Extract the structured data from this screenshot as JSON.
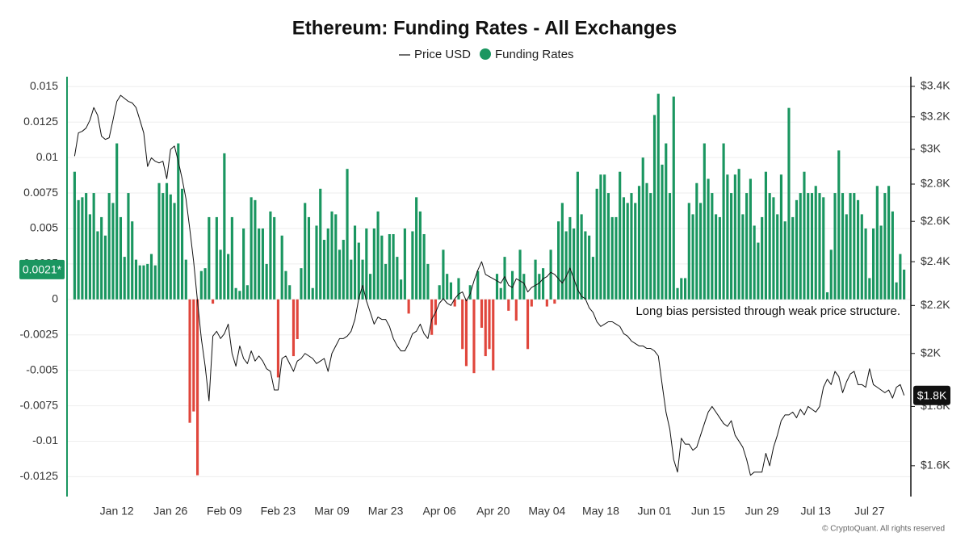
{
  "chart_data": {
    "type": "combo",
    "title": "Ethereum: Funding Rates - All Exchanges",
    "annotation": "Long bias persisted through weak price structure.",
    "footer": "© CryptoQuant. All rights reserved",
    "categories": [
      null,
      null,
      null,
      null,
      null,
      null,
      null,
      null,
      null,
      null,
      null,
      "Jan 12",
      null,
      null,
      null,
      null,
      null,
      null,
      null,
      null,
      null,
      null,
      null,
      null,
      null,
      "Jan 26",
      null,
      null,
      null,
      null,
      null,
      null,
      null,
      null,
      null,
      null,
      null,
      null,
      null,
      "Feb 09",
      null,
      null,
      null,
      null,
      null,
      null,
      null,
      null,
      null,
      null,
      null,
      null,
      null,
      "Feb 23",
      null,
      null,
      null,
      null,
      null,
      null,
      null,
      null,
      null,
      null,
      null,
      null,
      null,
      "Mar 09",
      null,
      null,
      null,
      null,
      null,
      null,
      null,
      null,
      null,
      null,
      null,
      null,
      null,
      "Mar 23",
      null,
      null,
      null,
      null,
      null,
      null,
      null,
      null,
      null,
      null,
      null,
      null,
      null,
      "Apr 06",
      null,
      null,
      null,
      null,
      null,
      null,
      null,
      null,
      null,
      null,
      null,
      null,
      null,
      "Apr 20",
      null,
      null,
      null,
      null,
      null,
      null,
      null,
      null,
      null,
      null,
      null,
      null,
      null,
      "May 04",
      null,
      null,
      null,
      null,
      null,
      null,
      null,
      null,
      null,
      null,
      null,
      null,
      null,
      "May 18",
      null,
      null,
      null,
      null,
      null,
      null,
      null,
      null,
      null,
      null,
      null,
      null,
      null,
      "Jun 01",
      null,
      null,
      null,
      null,
      null,
      null,
      null,
      null,
      null,
      null,
      null,
      null,
      null,
      "Jun 15",
      null,
      null,
      null,
      null,
      null,
      null,
      null,
      null,
      null,
      null,
      null,
      null,
      null,
      "Jun 29",
      null,
      null,
      null,
      null,
      null,
      null,
      null,
      null,
      null,
      null,
      null,
      null,
      null,
      "Jul 13",
      null,
      null,
      null,
      null,
      null,
      null,
      null,
      null,
      null,
      null,
      null,
      null,
      null,
      "Jul 27",
      null,
      null,
      null,
      null,
      null,
      null,
      null,
      null,
      null
    ],
    "series": [
      {
        "name": "Price USD",
        "type": "line",
        "axis": "y2",
        "color": "#111111",
        "last_label": "$1.8K",
        "values": [
          2960,
          3100,
          3110,
          3130,
          3180,
          3260,
          3210,
          3080,
          3060,
          3070,
          3180,
          3300,
          3340,
          3320,
          3300,
          3290,
          3260,
          3180,
          3100,
          2900,
          2950,
          2930,
          2920,
          2930,
          2830,
          3000,
          3020,
          2930,
          2830,
          2720,
          2560,
          2400,
          2220,
          2060,
          1950,
          1820,
          2070,
          2090,
          2060,
          2080,
          2120,
          2000,
          1950,
          2030,
          1980,
          1960,
          2010,
          1970,
          1990,
          1970,
          1940,
          1930,
          1860,
          1860,
          1980,
          1990,
          1960,
          1930,
          1970,
          1980,
          2000,
          1990,
          1980,
          1960,
          1970,
          1980,
          1930,
          2000,
          2030,
          2060,
          2060,
          2070,
          2090,
          2140,
          2230,
          2290,
          2220,
          2170,
          2120,
          2150,
          2140,
          2140,
          2110,
          2060,
          2030,
          2010,
          2010,
          2040,
          2080,
          2090,
          2120,
          2080,
          2060,
          2140,
          2170,
          2210,
          2230,
          2210,
          2200,
          2230,
          2250,
          2260,
          2220,
          2250,
          2310,
          2360,
          2400,
          2340,
          2330,
          2320,
          2310,
          2300,
          2330,
          2290,
          2280,
          2320,
          2310,
          2300,
          2260,
          2280,
          2290,
          2300,
          2320,
          2330,
          2350,
          2340,
          2320,
          2300,
          2330,
          2370,
          2320,
          2270,
          2240,
          2230,
          2190,
          2170,
          2130,
          2110,
          2120,
          2130,
          2130,
          2120,
          2110,
          2080,
          2070,
          2050,
          2040,
          2030,
          2030,
          2020,
          2020,
          2010,
          1990,
          1880,
          1780,
          1720,
          1620,
          1580,
          1690,
          1670,
          1670,
          1650,
          1660,
          1700,
          1740,
          1780,
          1800,
          1780,
          1760,
          1740,
          1730,
          1750,
          1700,
          1680,
          1660,
          1620,
          1570,
          1580,
          1580,
          1580,
          1640,
          1600,
          1660,
          1700,
          1750,
          1770,
          1770,
          1780,
          1760,
          1790,
          1770,
          1800,
          1790,
          1780,
          1800,
          1870,
          1900,
          1880,
          1930,
          1910,
          1850,
          1890,
          1920,
          1930,
          1880,
          1880,
          1870,
          1940,
          1880,
          1870,
          1860,
          1850,
          1860,
          1830,
          1870,
          1880,
          1840
        ]
      },
      {
        "name": "Funding Rates",
        "type": "bar",
        "color": "#1a9660",
        "negative_color": "#e0463c",
        "last_label": "0.0021*",
        "values": [
          0.009,
          0.007,
          0.0072,
          0.0075,
          0.006,
          0.0075,
          0.0048,
          0.0058,
          0.0045,
          0.0075,
          0.0068,
          0.011,
          0.0058,
          0.003,
          0.0075,
          0.0055,
          0.0028,
          0.0024,
          0.0024,
          0.0025,
          0.0032,
          0.0024,
          0.0082,
          0.0075,
          0.0082,
          0.0074,
          0.0068,
          0.011,
          0.0078,
          0.0028,
          -0.0087,
          -0.0079,
          -0.0124,
          0.002,
          0.0022,
          0.0058,
          -0.0003,
          0.0058,
          0.0035,
          0.0103,
          0.0032,
          0.0058,
          0.0008,
          0.0006,
          0.005,
          0.001,
          0.0072,
          0.007,
          0.005,
          0.005,
          0.0025,
          0.0062,
          0.0058,
          -0.0055,
          0.0045,
          0.002,
          0.001,
          -0.004,
          -0.0028,
          0.0022,
          0.0068,
          0.0058,
          0.0008,
          0.0052,
          0.0078,
          0.0042,
          0.005,
          0.0062,
          0.006,
          0.0035,
          0.0042,
          0.0092,
          0.0028,
          0.0052,
          0.004,
          0.0028,
          0.005,
          0.0018,
          0.005,
          0.0062,
          0.0045,
          0.0025,
          0.0046,
          0.0046,
          0.003,
          0.0014,
          0.005,
          -0.001,
          0.0048,
          0.0072,
          0.0062,
          0.0046,
          0.0025,
          -0.0025,
          -0.0018,
          0.001,
          0.0035,
          0.0018,
          0.0012,
          -0.0005,
          0.0015,
          -0.0035,
          -0.0047,
          0.001,
          -0.0052,
          0.002,
          -0.002,
          -0.004,
          -0.0035,
          -0.005,
          0.0018,
          0.0008,
          0.003,
          -0.0008,
          0.002,
          -0.0015,
          0.0035,
          0.0018,
          -0.0035,
          -0.0005,
          0.0028,
          0.0018,
          0.0022,
          -0.0005,
          0.0035,
          -0.0003,
          0.0055,
          0.0068,
          0.0048,
          0.0058,
          0.005,
          0.009,
          0.006,
          0.0048,
          0.0045,
          0.003,
          0.0078,
          0.0088,
          0.0088,
          0.0075,
          0.0058,
          0.0058,
          0.009,
          0.0072,
          0.0068,
          0.0075,
          0.0068,
          0.008,
          0.01,
          0.0082,
          0.0075,
          0.013,
          0.0145,
          0.0095,
          0.011,
          0.0075,
          0.0143,
          0.0008,
          0.0015,
          0.0015,
          0.0068,
          0.006,
          0.0082,
          0.0068,
          0.011,
          0.0085,
          0.0075,
          0.006,
          0.0058,
          0.011,
          0.0088,
          0.0075,
          0.0088,
          0.0092,
          0.006,
          0.0075,
          0.0085,
          0.0052,
          0.004,
          0.0058,
          0.009,
          0.0075,
          0.0072,
          0.006,
          0.0088,
          0.0055,
          0.0135,
          0.0058,
          0.007,
          0.0075,
          0.009,
          0.0075,
          0.0075,
          0.008,
          0.0075,
          0.0072,
          0.0005,
          0.0035,
          0.0075,
          0.0105,
          0.0075,
          0.006,
          0.0075,
          0.0075,
          0.007,
          0.006,
          0.005,
          0.0015,
          0.005,
          0.008,
          0.0052,
          0.0075,
          0.008,
          0.0062,
          0.0012,
          0.0032,
          0.0021
        ]
      }
    ],
    "ylim": [
      -0.0139,
      0.0157
    ],
    "yticks": [
      0.015,
      0.0125,
      0.01,
      0.0075,
      0.005,
      0.0025,
      0,
      -0.0025,
      -0.005,
      -0.0075,
      -0.01,
      -0.0125
    ],
    "y2lim": [
      1505,
      3466
    ],
    "y2_log": true,
    "y2ticks": [
      {
        "value": 3400,
        "label": "$3.4K"
      },
      {
        "value": 3200,
        "label": "$3.2K"
      },
      {
        "value": 3000,
        "label": "$3K"
      },
      {
        "value": 2800,
        "label": "$2.8K"
      },
      {
        "value": 2600,
        "label": "$2.6K"
      },
      {
        "value": 2400,
        "label": "$2.4K"
      },
      {
        "value": 2200,
        "label": "$2.2K"
      },
      {
        "value": 2000,
        "label": "$2K"
      },
      {
        "value": 1800,
        "label": "$1.8K"
      },
      {
        "value": 1600,
        "label": "$1.6K"
      }
    ],
    "grid": true
  }
}
